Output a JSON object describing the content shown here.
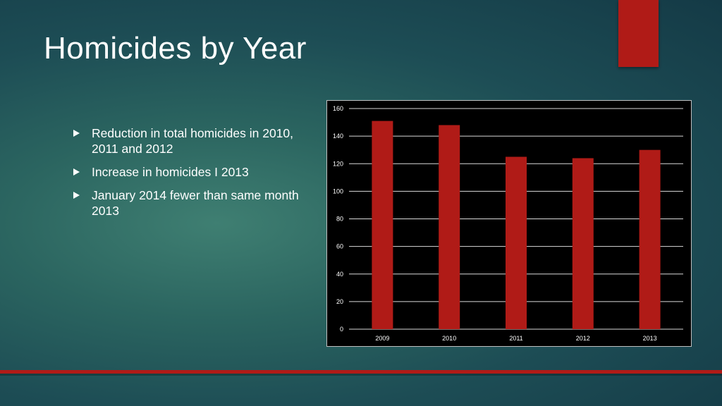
{
  "slide": {
    "title": "Homicides by Year",
    "bullets": [
      "Reduction in total homicides in 2010, 2011 and 2012",
      "Increase in homicides I 2013",
      "January 2014 fewer than same month 2013"
    ],
    "colors": {
      "accent": "#b01b17",
      "text": "#ffffff"
    }
  },
  "chart_data": {
    "type": "bar",
    "categories": [
      "2009",
      "2010",
      "2011",
      "2012",
      "2013"
    ],
    "values": [
      151,
      148,
      125,
      124,
      130
    ],
    "ylim": [
      0,
      160
    ],
    "yticks": [
      0,
      20,
      40,
      60,
      80,
      100,
      120,
      140,
      160
    ],
    "title": "",
    "xlabel": "",
    "ylabel": "",
    "grid": true,
    "legend": "none",
    "bar_color": "#b01b17",
    "background": "#000000",
    "text_color": "#ffffff"
  }
}
